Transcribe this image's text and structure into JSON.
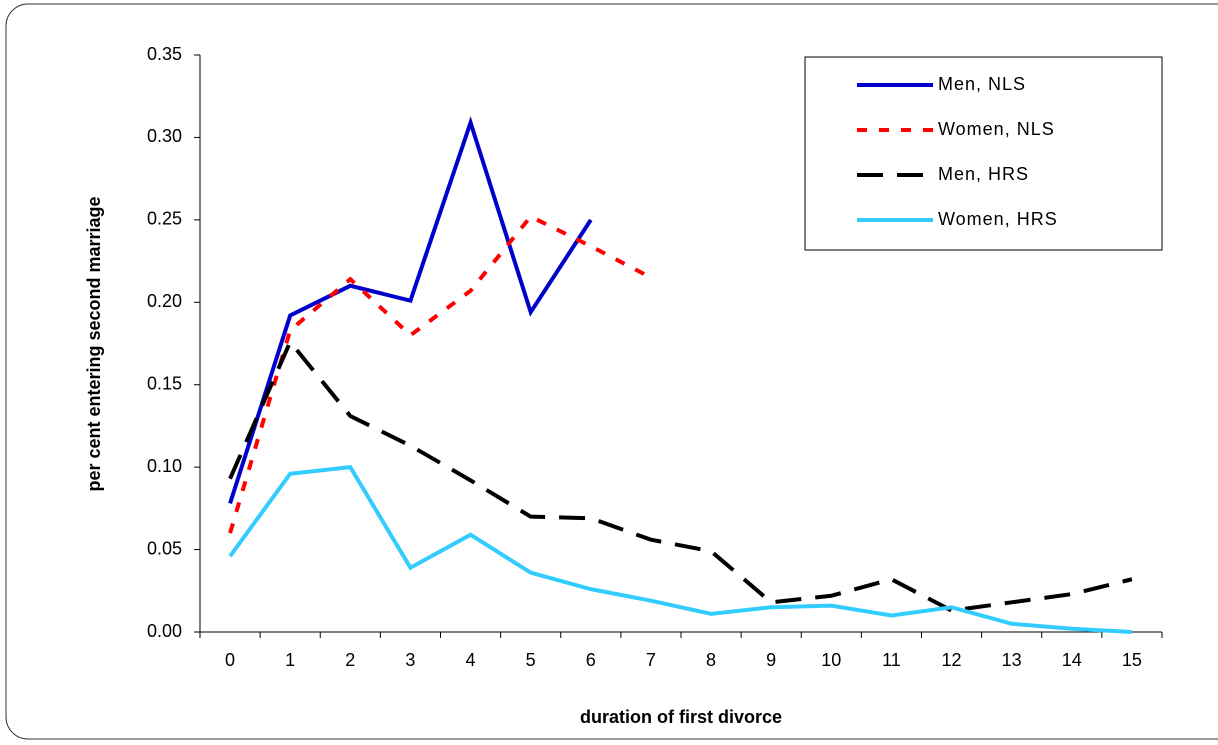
{
  "chart_data": {
    "type": "line",
    "x_label": "duration of first divorce",
    "y_label": "per cent entering second marriage",
    "categories": [
      "0",
      "1",
      "2",
      "3",
      "4",
      "5",
      "6",
      "7",
      "8",
      "9",
      "10",
      "11",
      "12",
      "13",
      "14",
      "15"
    ],
    "series": [
      {
        "name": "Men, NLS",
        "color": "#0000cc",
        "line_style": "solid",
        "values": [
          0.078,
          0.192,
          0.21,
          0.201,
          0.309,
          0.194,
          0.25,
          null,
          null,
          null,
          null,
          null,
          null,
          null,
          null,
          null
        ]
      },
      {
        "name": "Women, NLS",
        "color": "#ff0000",
        "line_style": "dotted",
        "values": [
          0.06,
          0.183,
          0.214,
          0.18,
          0.207,
          0.252,
          0.234,
          0.215,
          null,
          null,
          null,
          null,
          null,
          null,
          null,
          null
        ]
      },
      {
        "name": "Men, HRS",
        "color": "#000000",
        "line_style": "dashed",
        "values": [
          0.093,
          0.176,
          0.131,
          0.113,
          0.092,
          0.07,
          0.069,
          0.056,
          0.049,
          0.018,
          0.022,
          0.032,
          0.013,
          0.018,
          0.023,
          0.032
        ]
      },
      {
        "name": "Women, HRS",
        "color": "#33ccff",
        "line_style": "solid",
        "values": [
          0.046,
          0.096,
          0.1,
          0.039,
          0.059,
          0.036,
          0.026,
          0.019,
          0.011,
          0.015,
          0.016,
          0.01,
          0.015,
          0.005,
          0.002,
          0.0
        ]
      }
    ],
    "ylim": [
      0,
      0.35
    ],
    "yticks": [
      {
        "value": 0,
        "label": "0.00"
      },
      {
        "value": 0.05,
        "label": "0.05"
      },
      {
        "value": 0.1,
        "label": "0.10"
      },
      {
        "value": 0.15,
        "label": "0.15"
      },
      {
        "value": 0.2,
        "label": "0.20"
      },
      {
        "value": 0.25,
        "label": "0.25"
      },
      {
        "value": 0.3,
        "label": "0.30"
      },
      {
        "value": 0.35,
        "label": "0.35"
      }
    ],
    "legend": "top-right",
    "grid": false
  }
}
